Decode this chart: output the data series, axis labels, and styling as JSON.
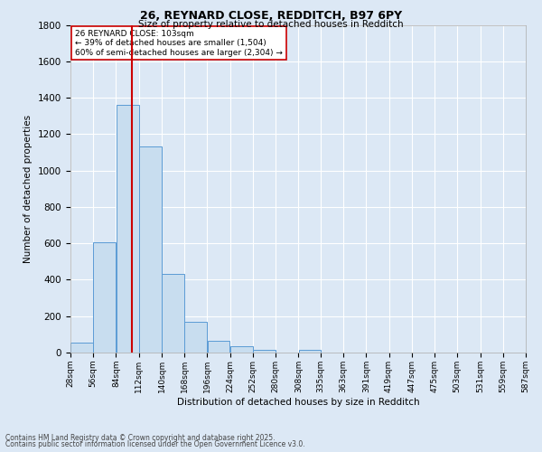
{
  "title1": "26, REYNARD CLOSE, REDDITCH, B97 6PY",
  "title2": "Size of property relative to detached houses in Redditch",
  "xlabel": "Distribution of detached houses by size in Redditch",
  "ylabel": "Number of detached properties",
  "bar_values": [
    55,
    605,
    1360,
    1130,
    430,
    170,
    65,
    35,
    15,
    0,
    15,
    0,
    0,
    0,
    0,
    0,
    0,
    0,
    0,
    0
  ],
  "bin_edges": [
    28,
    56,
    84,
    112,
    140,
    168,
    196,
    224,
    252,
    280,
    308,
    335,
    363,
    391,
    419,
    447,
    475,
    503,
    531,
    559,
    587
  ],
  "bin_labels": [
    "28sqm",
    "56sqm",
    "84sqm",
    "112sqm",
    "140sqm",
    "168sqm",
    "196sqm",
    "224sqm",
    "252sqm",
    "280sqm",
    "308sqm",
    "335sqm",
    "363sqm",
    "391sqm",
    "419sqm",
    "447sqm",
    "475sqm",
    "503sqm",
    "531sqm",
    "559sqm",
    "587sqm"
  ],
  "bar_color": "#c8ddef",
  "bar_edge_color": "#5b9bd5",
  "bg_color": "#dce8f5",
  "grid_color": "#ffffff",
  "vline_x": 103,
  "vline_color": "#cc0000",
  "annotation_text": "26 REYNARD CLOSE: 103sqm\n← 39% of detached houses are smaller (1,504)\n60% of semi-detached houses are larger (2,304) →",
  "annotation_box_color": "#ffffff",
  "annotation_box_edge": "#cc0000",
  "ylim": [
    0,
    1800
  ],
  "yticks": [
    0,
    200,
    400,
    600,
    800,
    1000,
    1200,
    1400,
    1600,
    1800
  ],
  "footer1": "Contains HM Land Registry data © Crown copyright and database right 2025.",
  "footer2": "Contains public sector information licensed under the Open Government Licence v3.0."
}
